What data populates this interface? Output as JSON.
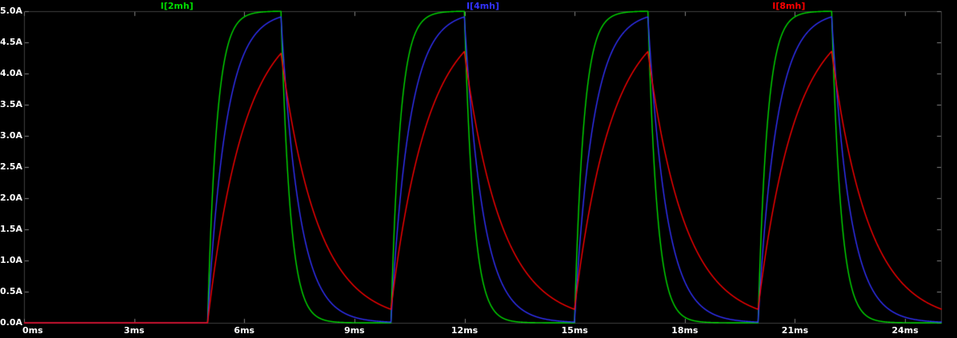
{
  "window": {
    "background": "#000000"
  },
  "chart_data": {
    "type": "line",
    "title": "",
    "grid": false,
    "legend_position": "top",
    "frame_color": "#3f3f3f",
    "tick_color": "#808080",
    "label_color": "#ffffff",
    "x_axis": {
      "unit": "ms",
      "min": 0,
      "max": 25,
      "tick_values": [
        0,
        3,
        6,
        9,
        12,
        15,
        18,
        21,
        24
      ],
      "tick_labels": [
        "0ms",
        "3ms",
        "6ms",
        "9ms",
        "12ms",
        "15ms",
        "18ms",
        "21ms",
        "24ms"
      ]
    },
    "y_axis": {
      "unit": "A",
      "min": 0,
      "max": 5,
      "tick_values": [
        0,
        0.5,
        1,
        1.5,
        2,
        2.5,
        3,
        3.5,
        4,
        4.5,
        5
      ],
      "tick_labels": [
        "0.0A",
        "0.5A",
        "1.0A",
        "1.5A",
        "2.0A",
        "2.5A",
        "3.0A",
        "3.5A",
        "4.0A",
        "4.5A",
        "5.0A"
      ]
    },
    "excitation_pulse": {
      "first_rise_ms": 5,
      "on_ms": 2,
      "period_ms": 5,
      "cycles": 4,
      "steady_current_A": 5
    },
    "series": [
      {
        "name": "I[2mh]",
        "color": "#00dd00",
        "tau_ms": 0.25,
        "peak_times_ms": [
          7,
          12,
          17,
          22
        ],
        "peaks_A": [
          5.0,
          5.0,
          5.0,
          5.0
        ],
        "valley_times_ms": [
          10,
          15,
          20
        ],
        "valleys_A": [
          0.0,
          0.0,
          0.0
        ]
      },
      {
        "name": "I[4mh]",
        "color": "#3232ff",
        "tau_ms": 0.5,
        "peak_times_ms": [
          7,
          12,
          17,
          22
        ],
        "peaks_A": [
          4.91,
          4.91,
          4.91,
          4.91
        ],
        "valley_times_ms": [
          10,
          15,
          20
        ],
        "valleys_A": [
          0.01,
          0.01,
          0.01
        ]
      },
      {
        "name": "I[8mh]",
        "color": "#ff0000",
        "tau_ms": 1.0,
        "peak_times_ms": [
          7,
          12,
          17,
          22
        ],
        "peaks_A": [
          4.32,
          4.35,
          4.35,
          4.35
        ],
        "valley_times_ms": [
          10,
          15,
          20
        ],
        "valleys_A": [
          0.22,
          0.22,
          0.22
        ]
      }
    ]
  }
}
